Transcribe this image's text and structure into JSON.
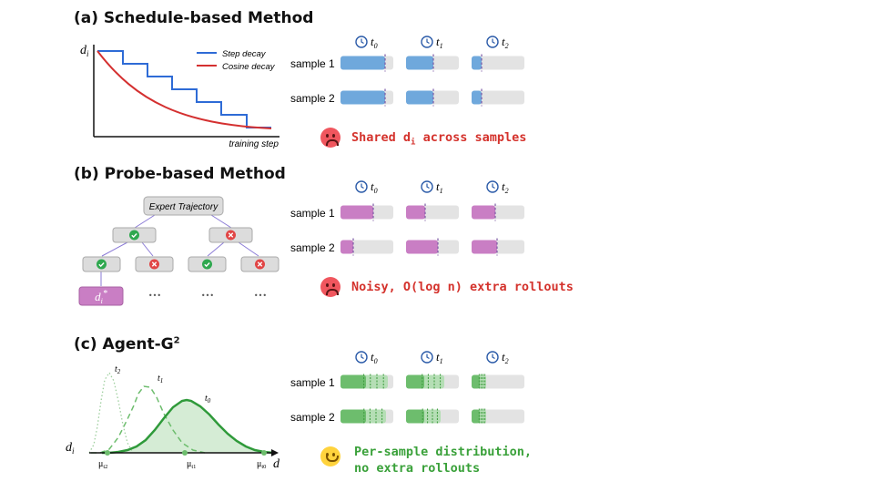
{
  "sections": {
    "a": {
      "title": "(a) Schedule-based Method",
      "ylabel": "d",
      "ylabel_sub": "i",
      "xlabel": "training step",
      "legend": [
        "Step decay",
        "Cosine decay"
      ],
      "note": "Shared d",
      "note_sub": "i",
      "note_rest": " across samples"
    },
    "b": {
      "title": "(b) Probe-based Method",
      "root": "Expert Trajectory",
      "leaf": "d",
      "leaf_sub": "i",
      "leaf_sup": "*",
      "ellipsis": "•••",
      "note": "Noisy, O(log n) extra rollouts"
    },
    "c": {
      "title": "(c) Agent-G",
      "title_sup": "2",
      "ylabel": "d",
      "ylabel_sub": "i",
      "xlabel": "d",
      "curve_labels": [
        {
          "t": "t",
          "s": "2"
        },
        {
          "t": "t",
          "s": "1"
        },
        {
          "t": "t",
          "s": "0"
        }
      ],
      "mu_labels": [
        {
          "m": "μ",
          "s": "t2"
        },
        {
          "m": "μ",
          "s": "t1"
        },
        {
          "m": "μ",
          "s": "t0"
        }
      ],
      "note_line1": "Per-sample distribution,",
      "note_line2": "no extra rollouts"
    }
  },
  "time_labels": [
    {
      "t": "t",
      "s": "0"
    },
    {
      "t": "t",
      "s": "1"
    },
    {
      "t": "t",
      "s": "2"
    }
  ],
  "sample_labels": [
    "sample 1",
    "sample 2"
  ],
  "colors": {
    "blue": "#6fa8dc",
    "pink": "#c97ec4",
    "green": "#6dbd6d",
    "green_light": "#b5deb5",
    "track": "#e3e3e3",
    "step_decay": "#2e6bd6",
    "cosine_decay": "#d43030",
    "red_text": "#d4322c",
    "green_text": "#3aa13a",
    "clock": "#2a5aa8"
  }
}
